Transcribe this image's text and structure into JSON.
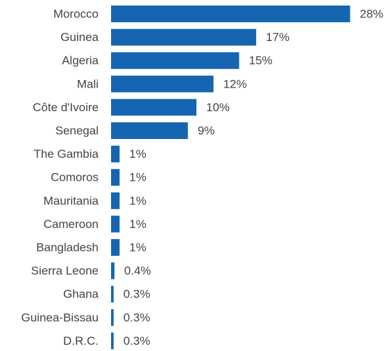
{
  "chart_data": {
    "type": "bar",
    "orientation": "horizontal",
    "categories": [
      "Morocco",
      "Guinea",
      "Algeria",
      "Mali",
      "Côte d'Ivoire",
      "Senegal",
      "The Gambia",
      "Comoros",
      "Mauritania",
      "Cameroon",
      "Bangladesh",
      "Sierra Leone",
      "Ghana",
      "Guinea-Bissau",
      "D.R.C."
    ],
    "values": [
      28,
      17,
      15,
      12,
      10,
      9,
      1,
      1,
      1,
      1,
      1,
      0.4,
      0.3,
      0.3,
      0.3
    ],
    "value_labels": [
      "28%",
      "17%",
      "15%",
      "12%",
      "10%",
      "9%",
      "1%",
      "1%",
      "1%",
      "1%",
      "1%",
      "0.4%",
      "0.3%",
      "0.3%",
      "0.3%"
    ],
    "title": "",
    "xlabel": "",
    "ylabel": "",
    "grid": false,
    "legend": "none",
    "bar_color": "#1565b0"
  }
}
